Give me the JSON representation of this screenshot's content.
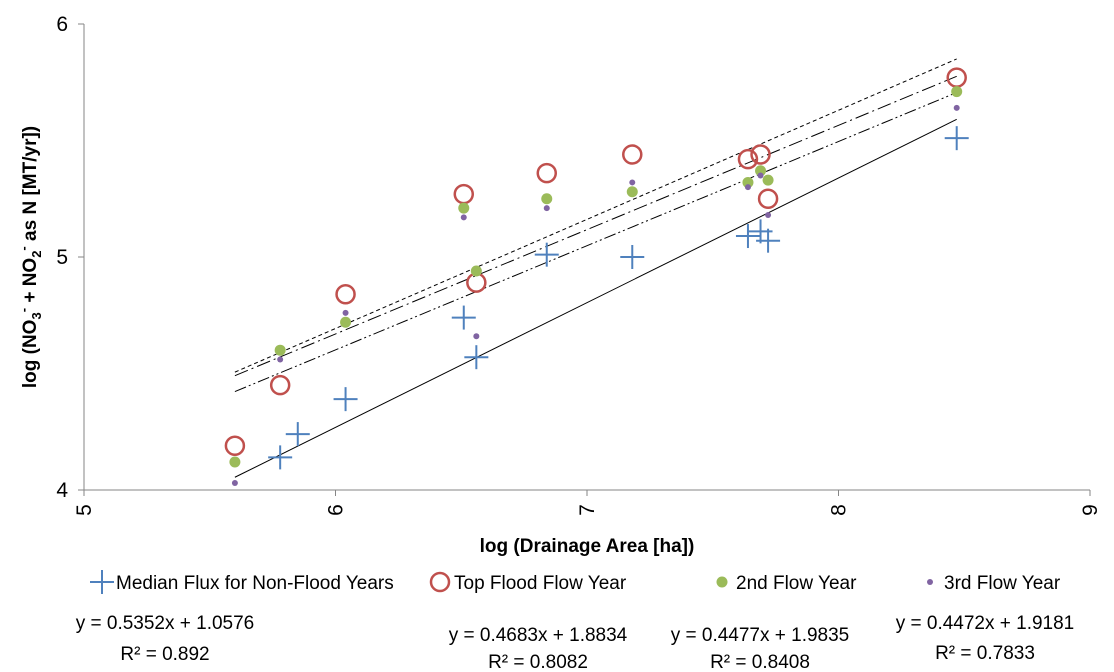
{
  "chart_data": {
    "type": "scatter",
    "title": "",
    "xlabel": "log (Drainage Area [ha])",
    "ylabel_parts": {
      "prefix": "log (NO",
      "sub1": "3",
      "sup1": "-",
      "middle": " + NO",
      "sub2": "2",
      "sup2": "-",
      "suffix": " as N [MT/yr])"
    },
    "xlim": [
      5,
      9
    ],
    "ylim": [
      4,
      6
    ],
    "xticks": [
      "5",
      "6",
      "7",
      "8",
      "9"
    ],
    "yticks": [
      "4",
      "5",
      "6"
    ],
    "grid": false,
    "legend_position": "bottom",
    "series": [
      {
        "name": "Median Flux for Non-Flood Years",
        "marker": "plus",
        "color": "#4f81bd",
        "line_style": "solid",
        "points": [
          [
            5.78,
            4.14
          ],
          [
            5.85,
            4.24
          ],
          [
            6.04,
            4.39
          ],
          [
            6.51,
            4.74
          ],
          [
            6.56,
            4.57
          ],
          [
            6.84,
            5.01
          ],
          [
            7.18,
            5.0
          ],
          [
            7.64,
            5.09
          ],
          [
            7.69,
            5.11
          ],
          [
            7.72,
            5.07
          ],
          [
            8.47,
            5.51
          ]
        ],
        "equation": "y = 0.5352x + 1.0576",
        "r2": "R² = 0.892"
      },
      {
        "name": "Top Flood Flow Year",
        "marker": "circle-open",
        "color": "#c0504d",
        "line_style": "short-dash",
        "points": [
          [
            5.6,
            4.19
          ],
          [
            5.78,
            4.45
          ],
          [
            6.04,
            4.84
          ],
          [
            6.51,
            5.27
          ],
          [
            6.56,
            4.89
          ],
          [
            6.84,
            5.36
          ],
          [
            7.18,
            5.44
          ],
          [
            7.64,
            5.42
          ],
          [
            7.69,
            5.44
          ],
          [
            7.72,
            5.25
          ],
          [
            8.47,
            5.77
          ]
        ],
        "equation": "y = 0.4683x + 1.8834",
        "r2": "R² = 0.8082"
      },
      {
        "name": "2nd Flow Year",
        "marker": "dot-large",
        "color": "#9bbb59",
        "line_style": "long-dash-dot",
        "points": [
          [
            5.6,
            4.12
          ],
          [
            5.78,
            4.6
          ],
          [
            6.04,
            4.72
          ],
          [
            6.51,
            5.21
          ],
          [
            6.56,
            4.94
          ],
          [
            6.84,
            5.25
          ],
          [
            7.18,
            5.28
          ],
          [
            7.64,
            5.32
          ],
          [
            7.69,
            5.37
          ],
          [
            7.72,
            5.33
          ],
          [
            8.47,
            5.71
          ]
        ],
        "equation": "y = 0.4477x + 1.9835",
        "r2": "R² = 0.8408"
      },
      {
        "name": "3rd Flow Year",
        "marker": "dot-small",
        "color": "#8064a2",
        "line_style": "dash-dot-dot",
        "points": [
          [
            5.6,
            4.03
          ],
          [
            5.78,
            4.56
          ],
          [
            6.04,
            4.76
          ],
          [
            6.51,
            5.17
          ],
          [
            6.56,
            4.66
          ],
          [
            6.84,
            5.21
          ],
          [
            7.18,
            5.32
          ],
          [
            7.64,
            5.3
          ],
          [
            7.69,
            5.35
          ],
          [
            7.72,
            5.18
          ],
          [
            8.47,
            5.64
          ]
        ],
        "equation": "y = 0.4472x + 1.9181",
        "r2": "R² = 0.7833"
      }
    ],
    "trend_x_range": [
      5.6,
      8.47
    ]
  }
}
